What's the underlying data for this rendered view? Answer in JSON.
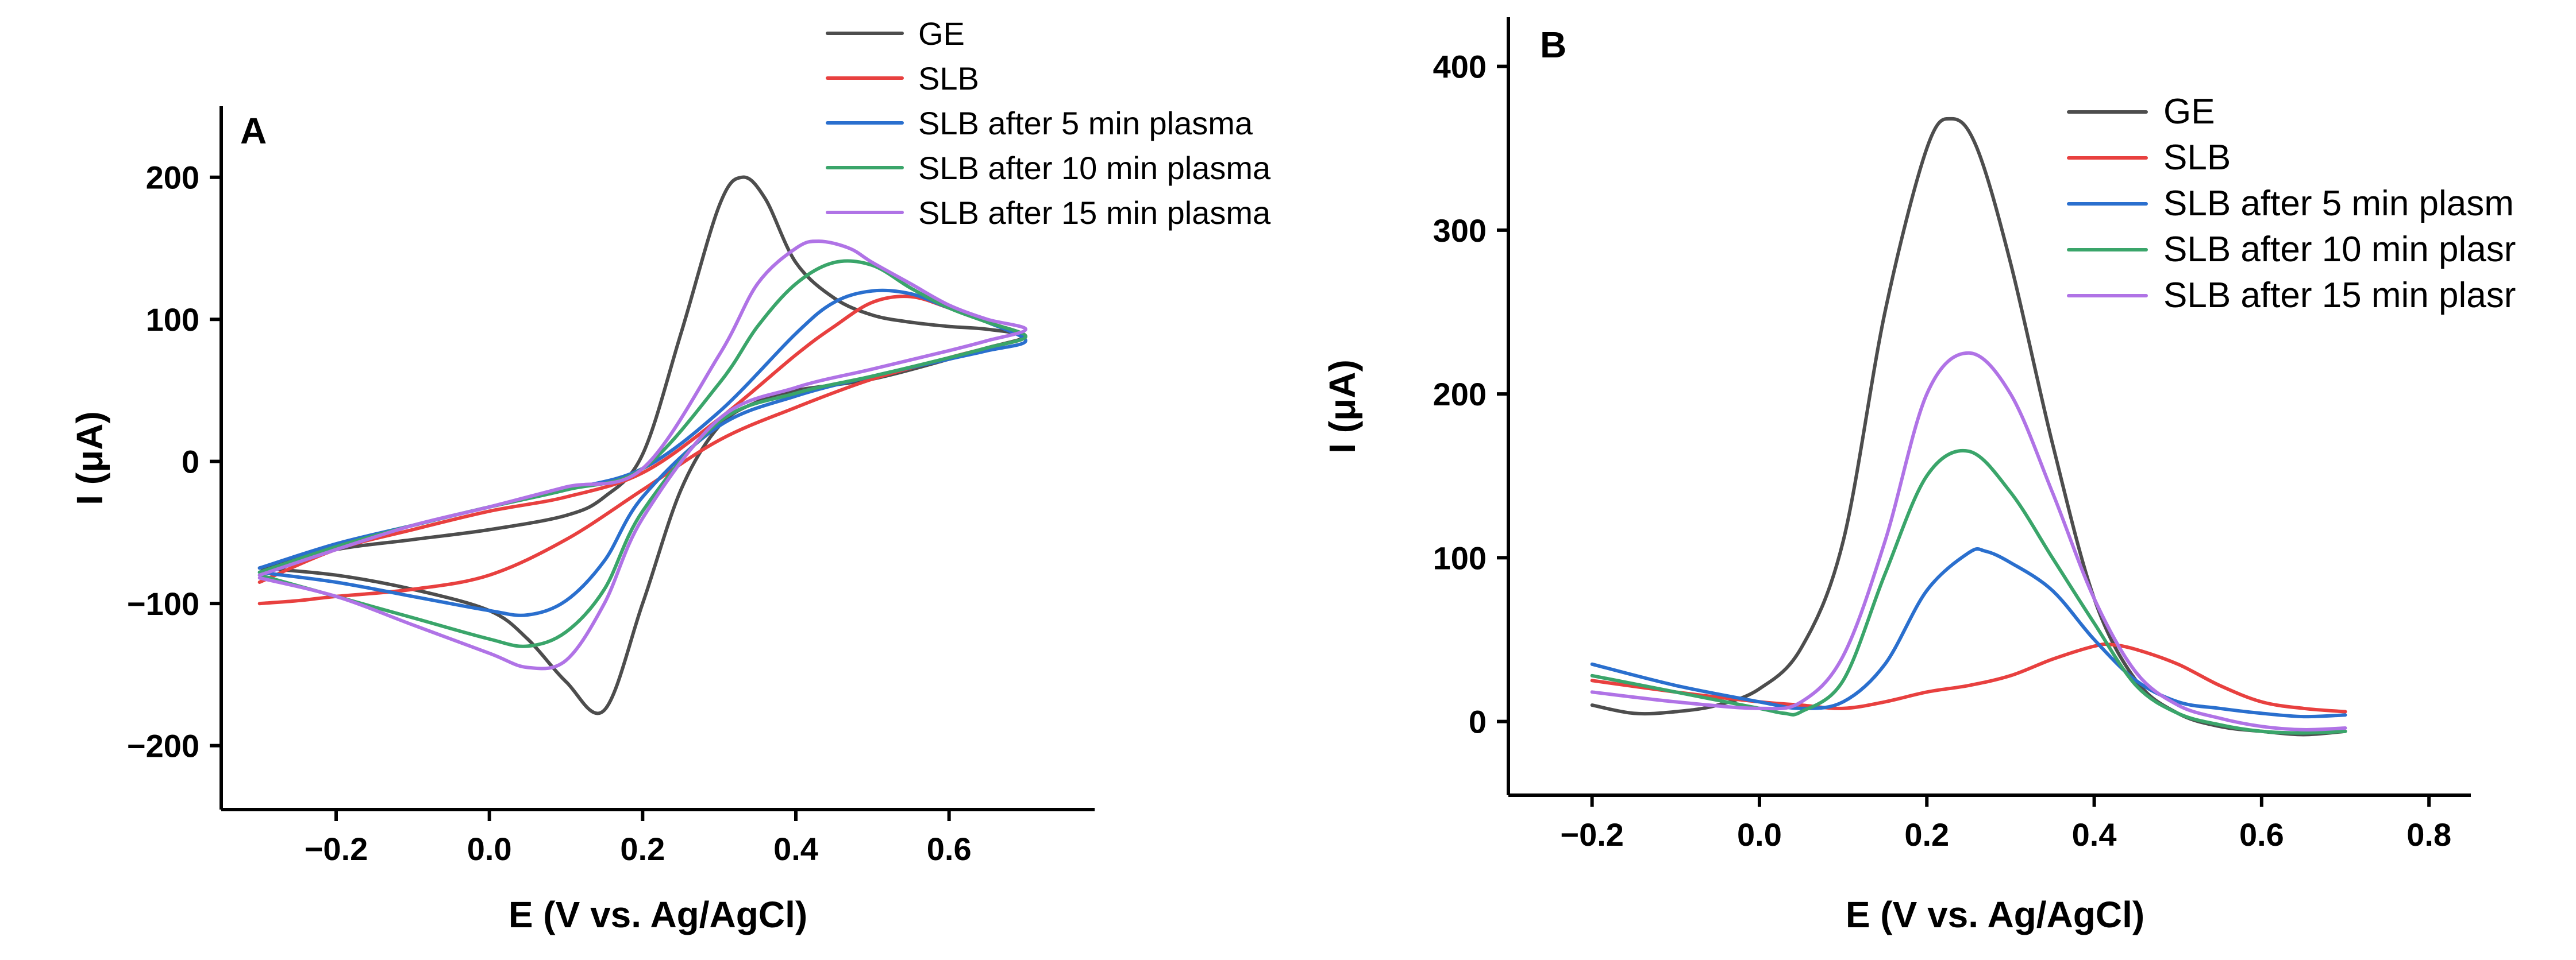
{
  "series_colors": {
    "GE": "#4d4d4d",
    "SLB": "#e8403f",
    "SLB after 5 min plasma": "#2a6fce",
    "SLB after 10 min plasma": "#3aa56a",
    "SLB after 15 min plasma": "#b073e6"
  },
  "chart_data": [
    {
      "id": "A",
      "type": "line",
      "panel_label": "A",
      "xlabel": "E (V vs. Ag/AgCl)",
      "ylabel": "I (μA)",
      "xlim": [
        -0.35,
        0.79
      ],
      "ylim": [
        -245,
        250
      ],
      "xticks": [
        -0.2,
        0.0,
        0.2,
        0.4,
        0.6
      ],
      "xtick_labels": [
        "−0.2",
        "0.0",
        "0.2",
        "0.4",
        "0.6"
      ],
      "yticks": [
        -200,
        -100,
        0,
        100,
        200
      ],
      "ytick_labels": [
        "−200",
        "−100",
        "0",
        "100",
        "200"
      ],
      "legend": [
        "GE",
        "SLB",
        "SLB after 5 min plasma",
        "SLB after 10 min plasma",
        "SLB after 15 min plasma"
      ],
      "series": [
        {
          "name": "GE",
          "x": [
            -0.3,
            -0.2,
            -0.1,
            0.0,
            0.1,
            0.15,
            0.2,
            0.25,
            0.3,
            0.33,
            0.36,
            0.4,
            0.45,
            0.5,
            0.55,
            0.6,
            0.65,
            0.7,
            0.65,
            0.6,
            0.5,
            0.4,
            0.35,
            0.3,
            0.25,
            0.2,
            0.15,
            0.1,
            0.05,
            0.0,
            -0.1,
            -0.2,
            -0.3
          ],
          "y": [
            -75,
            -62,
            -55,
            -48,
            -38,
            -25,
            5,
            90,
            180,
            200,
            185,
            140,
            115,
            103,
            98,
            95,
            93,
            88,
            80,
            72,
            58,
            50,
            42,
            25,
            -20,
            -100,
            -175,
            -155,
            -125,
            -105,
            -90,
            -80,
            -75
          ]
        },
        {
          "name": "SLB",
          "x": [
            -0.3,
            -0.2,
            -0.1,
            0.0,
            0.1,
            0.2,
            0.3,
            0.4,
            0.45,
            0.5,
            0.55,
            0.6,
            0.65,
            0.7,
            0.65,
            0.6,
            0.5,
            0.4,
            0.3,
            0.2,
            0.1,
            0.0,
            -0.1,
            -0.2,
            -0.25,
            -0.3
          ],
          "y": [
            -85,
            -62,
            -48,
            -35,
            -25,
            -8,
            30,
            75,
            95,
            112,
            116,
            108,
            98,
            88,
            80,
            73,
            58,
            38,
            15,
            -20,
            -55,
            -80,
            -90,
            -95,
            -98,
            -100
          ]
        },
        {
          "name": "SLB after 5 min plasma",
          "x": [
            -0.3,
            -0.2,
            -0.1,
            0.0,
            0.1,
            0.2,
            0.3,
            0.4,
            0.45,
            0.5,
            0.55,
            0.6,
            0.65,
            0.7,
            0.65,
            0.6,
            0.5,
            0.4,
            0.3,
            0.2,
            0.15,
            0.1,
            0.05,
            0.0,
            -0.1,
            -0.2,
            -0.3
          ],
          "y": [
            -75,
            -58,
            -45,
            -32,
            -20,
            -5,
            35,
            90,
            112,
            120,
            118,
            108,
            98,
            85,
            78,
            72,
            60,
            46,
            25,
            -25,
            -70,
            -98,
            -108,
            -105,
            -95,
            -85,
            -78
          ]
        },
        {
          "name": "SLB after 10 min plasma",
          "x": [
            -0.3,
            -0.2,
            -0.1,
            0.0,
            0.1,
            0.2,
            0.3,
            0.35,
            0.4,
            0.45,
            0.5,
            0.55,
            0.6,
            0.65,
            0.7,
            0.65,
            0.6,
            0.5,
            0.4,
            0.3,
            0.2,
            0.15,
            0.1,
            0.05,
            0.0,
            -0.1,
            -0.2,
            -0.3
          ],
          "y": [
            -78,
            -60,
            -45,
            -32,
            -20,
            -5,
            55,
            95,
            125,
            140,
            138,
            122,
            108,
            98,
            88,
            80,
            73,
            60,
            48,
            28,
            -35,
            -90,
            -120,
            -130,
            -125,
            -110,
            -95,
            -80
          ]
        },
        {
          "name": "SLB after 15 min plasma",
          "x": [
            -0.3,
            -0.2,
            -0.1,
            0.0,
            0.1,
            0.2,
            0.3,
            0.35,
            0.4,
            0.43,
            0.47,
            0.5,
            0.55,
            0.6,
            0.65,
            0.7,
            0.65,
            0.6,
            0.5,
            0.4,
            0.3,
            0.2,
            0.15,
            0.1,
            0.05,
            0.0,
            -0.1,
            -0.2,
            -0.3
          ],
          "y": [
            -80,
            -62,
            -45,
            -32,
            -18,
            -5,
            75,
            125,
            150,
            155,
            150,
            140,
            125,
            110,
            100,
            93,
            85,
            78,
            65,
            52,
            30,
            -40,
            -100,
            -140,
            -145,
            -135,
            -115,
            -95,
            -82
          ]
        }
      ]
    },
    {
      "id": "B",
      "type": "line",
      "panel_label": "B",
      "xlabel": "E (V vs. Ag/AgCl)",
      "ylabel": "I (μA)",
      "xlim": [
        -0.3,
        0.85
      ],
      "ylim": [
        -45,
        430
      ],
      "xticks": [
        -0.2,
        0.0,
        0.2,
        0.4,
        0.6,
        0.8
      ],
      "xtick_labels": [
        "−0.2",
        "0.0",
        "0.2",
        "0.4",
        "0.6",
        "0.8"
      ],
      "yticks": [
        0,
        100,
        200,
        300,
        400
      ],
      "ytick_labels": [
        "0",
        "100",
        "200",
        "300",
        "400"
      ],
      "legend": [
        "GE",
        "SLB",
        "SLB after 5 min plasm",
        "SLB after 10 min plasr",
        "SLB after 15 min plasr"
      ],
      "series": [
        {
          "name": "GE",
          "x": [
            -0.2,
            -0.15,
            -0.1,
            -0.05,
            0.0,
            0.05,
            0.1,
            0.15,
            0.2,
            0.23,
            0.26,
            0.3,
            0.35,
            0.4,
            0.45,
            0.5,
            0.55,
            0.6,
            0.65,
            0.7
          ],
          "y": [
            10,
            5,
            6,
            10,
            20,
            45,
            110,
            250,
            350,
            368,
            350,
            280,
            170,
            75,
            25,
            5,
            -3,
            -6,
            -8,
            -6
          ]
        },
        {
          "name": "SLB",
          "x": [
            -0.2,
            -0.1,
            0.0,
            0.05,
            0.1,
            0.15,
            0.2,
            0.25,
            0.3,
            0.35,
            0.4,
            0.42,
            0.45,
            0.5,
            0.55,
            0.6,
            0.65,
            0.7
          ],
          "y": [
            25,
            18,
            12,
            10,
            8,
            12,
            18,
            22,
            28,
            38,
            46,
            47,
            44,
            35,
            22,
            12,
            8,
            6
          ]
        },
        {
          "name": "SLB after 5 min plasma",
          "x": [
            -0.2,
            -0.1,
            0.0,
            0.05,
            0.1,
            0.15,
            0.2,
            0.25,
            0.27,
            0.3,
            0.35,
            0.4,
            0.45,
            0.5,
            0.55,
            0.6,
            0.65,
            0.7
          ],
          "y": [
            35,
            22,
            12,
            8,
            12,
            35,
            80,
            103,
            104,
            97,
            80,
            50,
            25,
            12,
            8,
            5,
            3,
            4
          ]
        },
        {
          "name": "SLB after 10 min plasma",
          "x": [
            -0.2,
            -0.1,
            0.0,
            0.03,
            0.05,
            0.1,
            0.15,
            0.2,
            0.25,
            0.3,
            0.35,
            0.4,
            0.45,
            0.5,
            0.55,
            0.6,
            0.65,
            0.7
          ],
          "y": [
            28,
            18,
            8,
            5,
            6,
            25,
            90,
            150,
            165,
            140,
            100,
            60,
            22,
            5,
            -2,
            -6,
            -7,
            -6
          ]
        },
        {
          "name": "SLB after 15 min plasma",
          "x": [
            -0.2,
            -0.1,
            0.0,
            0.05,
            0.1,
            0.15,
            0.2,
            0.25,
            0.3,
            0.35,
            0.4,
            0.45,
            0.5,
            0.55,
            0.6,
            0.65,
            0.7
          ],
          "y": [
            18,
            12,
            8,
            12,
            40,
            110,
            200,
            225,
            200,
            140,
            75,
            30,
            10,
            2,
            -3,
            -5,
            -4
          ]
        }
      ]
    }
  ]
}
